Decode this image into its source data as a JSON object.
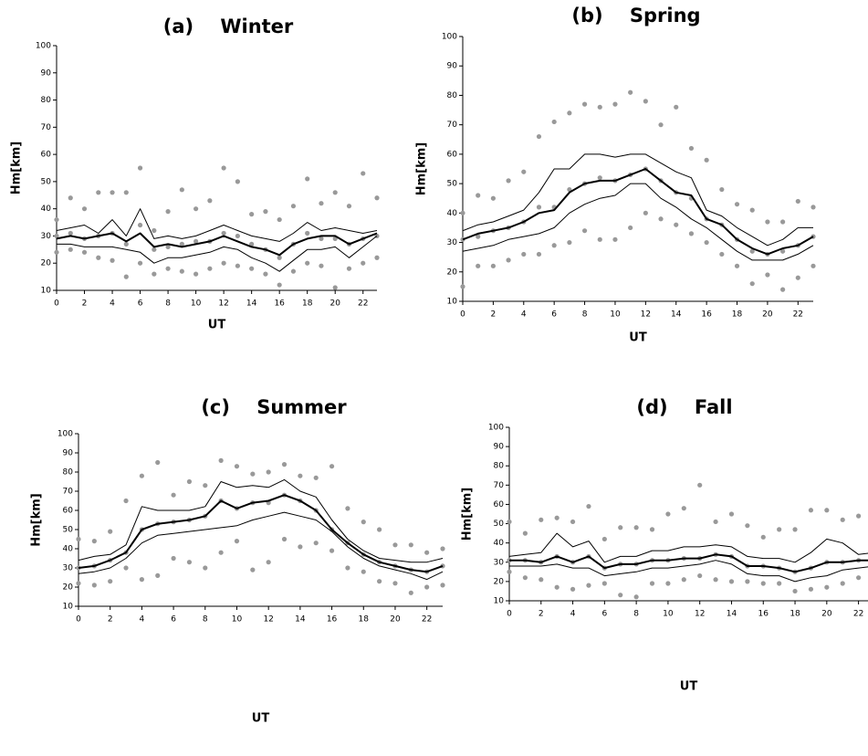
{
  "chart_data": [
    {
      "type": "line",
      "title": "(a)    Winter",
      "x_label": "UT",
      "y_label": "Hm[km]",
      "xlim": [
        0,
        23
      ],
      "ylim": [
        10,
        100
      ],
      "xticks": [
        0,
        2,
        4,
        6,
        8,
        10,
        12,
        14,
        16,
        18,
        20,
        22
      ],
      "yticks": [
        10,
        20,
        30,
        40,
        50,
        60,
        70,
        80,
        90,
        100
      ],
      "x": [
        0,
        1,
        2,
        3,
        4,
        5,
        6,
        7,
        8,
        9,
        10,
        11,
        12,
        13,
        14,
        15,
        16,
        17,
        18,
        19,
        20,
        21,
        22,
        23
      ],
      "series": [
        {
          "color": "#000000",
          "width": 2,
          "values": [
            29,
            30,
            29,
            30,
            31,
            28,
            31,
            26,
            27,
            26,
            27,
            28,
            30,
            28,
            26,
            25,
            23,
            27,
            29,
            30,
            30,
            27,
            29,
            31
          ]
        },
        {
          "color": "#000000",
          "width": 1,
          "values": [
            32,
            33,
            34,
            31,
            36,
            30,
            40,
            29,
            30,
            29,
            30,
            32,
            34,
            32,
            30,
            29,
            28,
            31,
            35,
            32,
            33,
            32,
            31,
            32
          ]
        },
        {
          "color": "#000000",
          "width": 1,
          "values": [
            27,
            27,
            26,
            26,
            26,
            25,
            24,
            20,
            22,
            22,
            23,
            24,
            26,
            25,
            22,
            20,
            17,
            21,
            25,
            25,
            26,
            22,
            26,
            30
          ]
        }
      ],
      "points": {
        "color": "#999999",
        "x": [
          0,
          0,
          0,
          1,
          1,
          1,
          2,
          2,
          2,
          3,
          3,
          3,
          4,
          4,
          4,
          5,
          5,
          5,
          6,
          6,
          6,
          7,
          7,
          7,
          8,
          8,
          8,
          9,
          9,
          9,
          10,
          10,
          10,
          11,
          11,
          11,
          12,
          12,
          12,
          13,
          13,
          13,
          14,
          14,
          14,
          15,
          15,
          15,
          16,
          16,
          16,
          17,
          17,
          17,
          18,
          18,
          18,
          19,
          19,
          19,
          20,
          20,
          20,
          21,
          21,
          21,
          22,
          22,
          22,
          23,
          23,
          23
        ],
        "values": [
          24,
          30,
          36,
          25,
          31,
          44,
          24,
          29,
          40,
          22,
          30,
          46,
          21,
          31,
          46,
          15,
          27,
          46,
          20,
          34,
          55,
          16,
          25,
          32,
          18,
          26,
          39,
          17,
          27,
          47,
          16,
          28,
          40,
          18,
          28,
          43,
          20,
          31,
          55,
          19,
          30,
          50,
          18,
          27,
          38,
          16,
          25,
          39,
          12,
          22,
          36,
          17,
          27,
          41,
          20,
          31,
          51,
          19,
          29,
          42,
          11,
          29,
          46,
          18,
          27,
          41,
          20,
          29,
          53,
          22,
          30,
          44
        ]
      }
    },
    {
      "type": "line",
      "title": "(b)    Spring",
      "x_label": "UT",
      "y_label": "Hm[km]",
      "xlim": [
        0,
        23
      ],
      "ylim": [
        10,
        100
      ],
      "xticks": [
        0,
        2,
        4,
        6,
        8,
        10,
        12,
        14,
        16,
        18,
        20,
        22
      ],
      "yticks": [
        10,
        20,
        30,
        40,
        50,
        60,
        70,
        80,
        90,
        100
      ],
      "x": [
        0,
        1,
        2,
        3,
        4,
        5,
        6,
        7,
        8,
        9,
        10,
        11,
        12,
        13,
        14,
        15,
        16,
        17,
        18,
        19,
        20,
        21,
        22,
        23
      ],
      "series": [
        {
          "color": "#000000",
          "width": 2,
          "values": [
            31,
            33,
            34,
            35,
            37,
            40,
            41,
            47,
            50,
            51,
            51,
            53,
            55,
            51,
            47,
            46,
            38,
            36,
            31,
            28,
            26,
            28,
            29,
            32
          ]
        },
        {
          "color": "#000000",
          "width": 1,
          "values": [
            34,
            36,
            37,
            39,
            41,
            47,
            55,
            55,
            60,
            60,
            59,
            60,
            60,
            57,
            54,
            52,
            41,
            39,
            35,
            32,
            29,
            31,
            35,
            35
          ]
        },
        {
          "color": "#000000",
          "width": 1,
          "values": [
            27,
            28,
            29,
            31,
            32,
            33,
            35,
            40,
            43,
            45,
            46,
            50,
            50,
            45,
            42,
            38,
            35,
            31,
            27,
            24,
            24,
            24,
            26,
            29
          ]
        }
      ],
      "points": {
        "color": "#999999",
        "x": [
          0,
          0,
          0,
          1,
          1,
          1,
          2,
          2,
          2,
          3,
          3,
          3,
          4,
          4,
          4,
          5,
          5,
          5,
          6,
          6,
          6,
          7,
          7,
          7,
          8,
          8,
          8,
          9,
          9,
          9,
          10,
          10,
          10,
          11,
          11,
          11,
          12,
          12,
          12,
          13,
          13,
          13,
          14,
          14,
          14,
          15,
          15,
          15,
          16,
          16,
          16,
          17,
          17,
          17,
          18,
          18,
          18,
          19,
          19,
          19,
          20,
          20,
          20,
          21,
          21,
          21,
          22,
          22,
          22,
          23,
          23,
          23
        ],
        "values": [
          15,
          31,
          40,
          22,
          32,
          46,
          22,
          34,
          45,
          24,
          35,
          51,
          26,
          37,
          54,
          26,
          42,
          66,
          29,
          42,
          71,
          30,
          48,
          74,
          34,
          50,
          77,
          31,
          52,
          76,
          31,
          51,
          77,
          35,
          53,
          81,
          40,
          55,
          78,
          38,
          51,
          70,
          36,
          47,
          76,
          33,
          45,
          62,
          30,
          38,
          58,
          26,
          36,
          48,
          22,
          31,
          43,
          16,
          27,
          41,
          19,
          26,
          37,
          14,
          27,
          37,
          18,
          29,
          44,
          22,
          32,
          42
        ]
      }
    },
    {
      "type": "line",
      "title": "(c)    Summer",
      "x_label": "UT",
      "y_label": "Hm[km]",
      "xlim": [
        0,
        23
      ],
      "ylim": [
        10,
        100
      ],
      "xticks": [
        0,
        2,
        4,
        6,
        8,
        10,
        12,
        14,
        16,
        18,
        20,
        22
      ],
      "yticks": [
        10,
        20,
        30,
        40,
        50,
        60,
        70,
        80,
        90,
        100
      ],
      "x": [
        0,
        1,
        2,
        3,
        4,
        5,
        6,
        7,
        8,
        9,
        10,
        11,
        12,
        13,
        14,
        15,
        16,
        17,
        18,
        19,
        20,
        21,
        22,
        23
      ],
      "series": [
        {
          "color": "#000000",
          "width": 2,
          "values": [
            30,
            31,
            34,
            38,
            50,
            53,
            54,
            55,
            57,
            65,
            61,
            64,
            65,
            68,
            65,
            60,
            50,
            43,
            37,
            33,
            31,
            29,
            28,
            31
          ]
        },
        {
          "color": "#000000",
          "width": 1,
          "values": [
            34,
            36,
            37,
            42,
            62,
            60,
            60,
            60,
            62,
            75,
            72,
            73,
            72,
            76,
            70,
            67,
            55,
            45,
            39,
            35,
            34,
            33,
            33,
            35
          ]
        },
        {
          "color": "#000000",
          "width": 1,
          "values": [
            27,
            28,
            30,
            35,
            43,
            47,
            48,
            49,
            50,
            51,
            52,
            55,
            57,
            59,
            57,
            55,
            49,
            41,
            35,
            31,
            29,
            27,
            24,
            28
          ]
        }
      ],
      "points": {
        "color": "#999999",
        "x": [
          0,
          0,
          0,
          1,
          1,
          1,
          2,
          2,
          2,
          3,
          3,
          3,
          4,
          4,
          4,
          5,
          5,
          5,
          6,
          6,
          6,
          7,
          7,
          7,
          8,
          8,
          8,
          9,
          9,
          9,
          10,
          10,
          10,
          11,
          11,
          11,
          12,
          12,
          12,
          13,
          13,
          13,
          14,
          14,
          14,
          15,
          15,
          15,
          16,
          16,
          16,
          17,
          17,
          17,
          18,
          18,
          18,
          19,
          19,
          19,
          20,
          20,
          20,
          21,
          21,
          21,
          22,
          22,
          22,
          23,
          23,
          23
        ],
        "values": [
          22,
          30,
          45,
          21,
          31,
          44,
          23,
          34,
          49,
          30,
          38,
          65,
          24,
          50,
          78,
          26,
          53,
          85,
          35,
          54,
          68,
          33,
          55,
          75,
          30,
          57,
          73,
          38,
          65,
          86,
          44,
          61,
          83,
          29,
          64,
          79,
          33,
          64,
          80,
          45,
          68,
          84,
          41,
          65,
          78,
          43,
          60,
          77,
          39,
          50,
          83,
          30,
          43,
          61,
          28,
          37,
          54,
          23,
          33,
          50,
          22,
          31,
          42,
          17,
          29,
          42,
          20,
          28,
          38,
          21,
          31,
          40
        ]
      }
    },
    {
      "type": "line",
      "title": "(d)    Fall",
      "x_label": "UT",
      "y_label": "Hm[km]",
      "xlim": [
        0,
        23
      ],
      "ylim": [
        10,
        100
      ],
      "xticks": [
        0,
        2,
        4,
        6,
        8,
        10,
        12,
        14,
        16,
        18,
        20,
        22
      ],
      "yticks": [
        10,
        20,
        30,
        40,
        50,
        60,
        70,
        80,
        90,
        100
      ],
      "x": [
        0,
        1,
        2,
        3,
        4,
        5,
        6,
        7,
        8,
        9,
        10,
        11,
        12,
        13,
        14,
        15,
        16,
        17,
        18,
        19,
        20,
        21,
        22,
        23
      ],
      "series": [
        {
          "color": "#000000",
          "width": 2,
          "values": [
            31,
            31,
            30,
            33,
            30,
            33,
            27,
            29,
            29,
            31,
            31,
            32,
            32,
            34,
            33,
            28,
            28,
            27,
            25,
            27,
            30,
            30,
            31,
            31
          ]
        },
        {
          "color": "#000000",
          "width": 1,
          "values": [
            33,
            34,
            35,
            45,
            38,
            41,
            30,
            33,
            33,
            36,
            36,
            38,
            38,
            39,
            38,
            33,
            32,
            32,
            30,
            35,
            42,
            40,
            34,
            35
          ]
        },
        {
          "color": "#000000",
          "width": 1,
          "values": [
            28,
            28,
            28,
            29,
            27,
            27,
            23,
            24,
            25,
            27,
            27,
            28,
            29,
            31,
            29,
            24,
            23,
            23,
            20,
            22,
            23,
            26,
            27,
            28
          ]
        }
      ],
      "points": {
        "color": "#999999",
        "x": [
          0,
          0,
          0,
          1,
          1,
          1,
          2,
          2,
          2,
          3,
          3,
          3,
          4,
          4,
          4,
          5,
          5,
          5,
          6,
          6,
          6,
          7,
          7,
          7,
          8,
          8,
          8,
          9,
          9,
          9,
          10,
          10,
          10,
          11,
          11,
          11,
          12,
          12,
          12,
          13,
          13,
          13,
          14,
          14,
          14,
          15,
          15,
          15,
          16,
          16,
          16,
          17,
          17,
          17,
          18,
          18,
          18,
          19,
          19,
          19,
          20,
          20,
          20,
          21,
          21,
          21,
          22,
          22,
          22,
          23,
          23,
          23
        ],
        "values": [
          25,
          31,
          51,
          22,
          31,
          45,
          21,
          30,
          52,
          17,
          33,
          53,
          16,
          30,
          51,
          18,
          33,
          59,
          19,
          27,
          42,
          13,
          29,
          48,
          12,
          29,
          48,
          19,
          31,
          47,
          19,
          31,
          55,
          21,
          32,
          58,
          23,
          32,
          70,
          21,
          34,
          51,
          20,
          33,
          55,
          20,
          28,
          49,
          19,
          28,
          43,
          19,
          27,
          47,
          15,
          25,
          47,
          16,
          27,
          57,
          17,
          30,
          57,
          19,
          30,
          52,
          22,
          31,
          54,
          23,
          31,
          45
        ]
      }
    }
  ]
}
